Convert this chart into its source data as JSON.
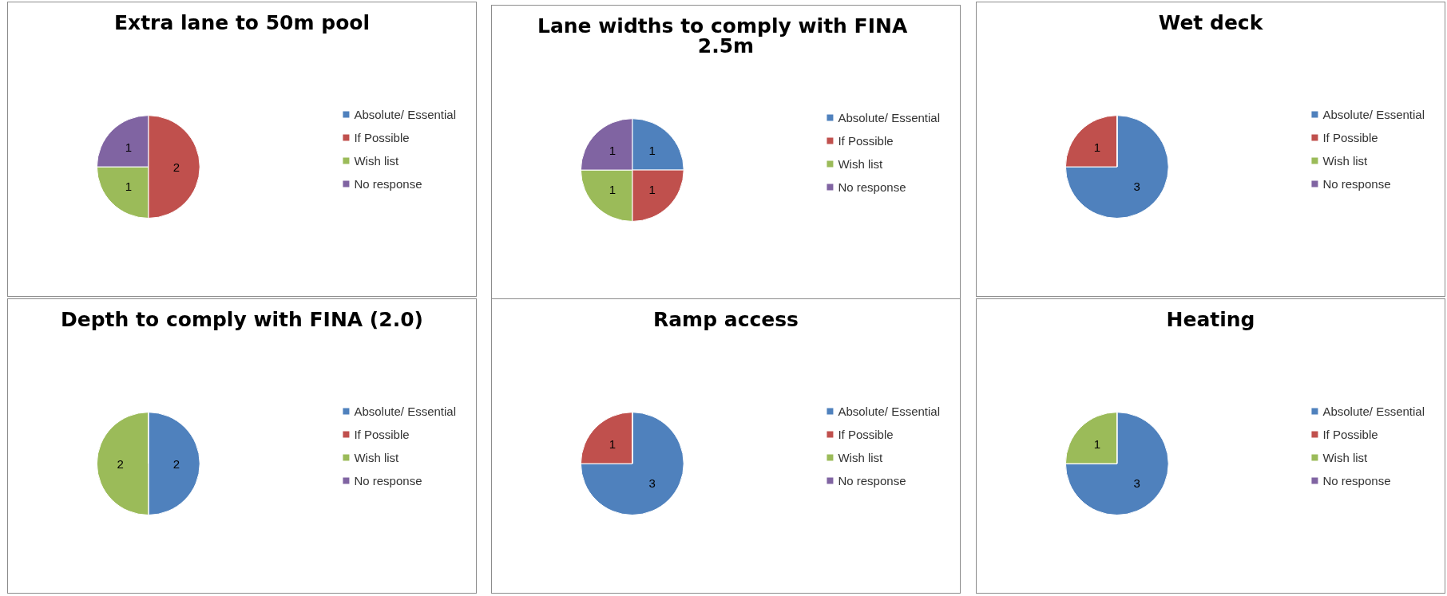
{
  "chart_data": [
    {
      "type": "pie",
      "title": "Extra lane to 50m pool",
      "categories": [
        "Absolute/ Essential",
        "If Possible",
        "Wish list",
        "No response"
      ],
      "values": [
        0,
        2,
        1,
        1
      ],
      "colors": [
        "#4f81bd",
        "#c0504d",
        "#9bbb59",
        "#8064a2"
      ],
      "value_labels": [
        null,
        "2",
        "1",
        "1"
      ],
      "legend": "right"
    },
    {
      "type": "pie",
      "title": "Lane widths to comply with FINA 2.5m",
      "categories": [
        "Absolute/ Essential",
        "If Possible",
        "Wish list",
        "No response"
      ],
      "values": [
        1,
        1,
        1,
        1
      ],
      "colors": [
        "#4f81bd",
        "#c0504d",
        "#9bbb59",
        "#8064a2"
      ],
      "value_labels": [
        "1",
        "1",
        "1",
        "1"
      ],
      "legend": "right"
    },
    {
      "type": "pie",
      "title": "Wet deck",
      "categories": [
        "Absolute/ Essential",
        "If Possible",
        "Wish list",
        "No response"
      ],
      "values": [
        3,
        1,
        0,
        0
      ],
      "colors": [
        "#4f81bd",
        "#c0504d",
        "#9bbb59",
        "#8064a2"
      ],
      "value_labels": [
        "3",
        "1",
        null,
        null
      ],
      "legend": "right"
    },
    {
      "type": "pie",
      "title": "Depth to comply with FINA (2.0)",
      "categories": [
        "Absolute/ Essential",
        "If Possible",
        "Wish list",
        "No response"
      ],
      "values": [
        2,
        0,
        2,
        0
      ],
      "colors": [
        "#4f81bd",
        "#c0504d",
        "#9bbb59",
        "#8064a2"
      ],
      "value_labels": [
        "2",
        null,
        "2",
        null
      ],
      "legend": "right"
    },
    {
      "type": "pie",
      "title": "Ramp access",
      "categories": [
        "Absolute/ Essential",
        "If Possible",
        "Wish list",
        "No response"
      ],
      "values": [
        3,
        1,
        0,
        0
      ],
      "colors": [
        "#4f81bd",
        "#c0504d",
        "#9bbb59",
        "#8064a2"
      ],
      "value_labels": [
        "3",
        "1",
        null,
        null
      ],
      "legend": "right"
    },
    {
      "type": "pie",
      "title": "Heating",
      "categories": [
        "Absolute/ Essential",
        "If Possible",
        "Wish list",
        "No response"
      ],
      "values": [
        3,
        0,
        1,
        0
      ],
      "colors": [
        "#4f81bd",
        "#c0504d",
        "#9bbb59",
        "#8064a2"
      ],
      "value_labels": [
        "3",
        null,
        "1",
        null
      ],
      "legend": "right"
    }
  ]
}
